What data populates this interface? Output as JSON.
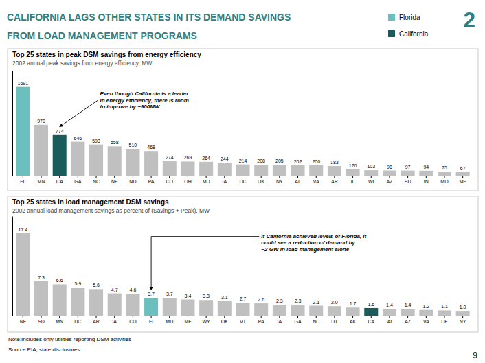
{
  "page": {
    "title": "CALIFORNIA LAGS OTHER STATES IN ITS DEMAND SAVINGS\nFROM LOAD MANAGEMENT PROGRAMS",
    "title_color": "#2e8080",
    "slide_number": "2",
    "legend_entries": [
      {
        "name": "Florida",
        "color": "#6bbfbf"
      },
      {
        "name": "California",
        "color": "#1a5c5c"
      }
    ],
    "note": "Note:Includes only utilities reporting DSM activities",
    "source": "Source:EIA;  state disclosures",
    "page_number": "9"
  },
  "chart_data": [
    {
      "type": "bar",
      "title": "Top 25 states in peak DSM savings from energy efficiency",
      "subtitle": "2002 annual peak savings from energy efficiency, MW",
      "categories": [
        "FL",
        "MN",
        "CA",
        "GA",
        "NC",
        "NE",
        "ND",
        "PA",
        "CO",
        "OH",
        "MD",
        "IA",
        "DC",
        "OK",
        "NY",
        "AL",
        "VA",
        "AR",
        "IL",
        "WI",
        "AZ",
        "SD",
        "IN",
        "MO",
        "ME"
      ],
      "values": [
        1691,
        970,
        774,
        646,
        593,
        558,
        510,
        468,
        274,
        269,
        264,
        244,
        214,
        208,
        205,
        202,
        200,
        183,
        120,
        103,
        98,
        97,
        94,
        75,
        67
      ],
      "colors": [
        "#6bbfbf",
        "#c0c0c0",
        "#1a5c5c",
        "#c0c0c0",
        "#c0c0c0",
        "#c0c0c0",
        "#c0c0c0",
        "#c0c0c0",
        "#c0c0c0",
        "#c0c0c0",
        "#c0c0c0",
        "#c0c0c0",
        "#c0c0c0",
        "#c0c0c0",
        "#c0c0c0",
        "#c0c0c0",
        "#c0c0c0",
        "#c0c0c0",
        "#c0c0c0",
        "#c0c0c0",
        "#c0c0c0",
        "#c0c0c0",
        "#c0c0c0",
        "#c0c0c0",
        "#c0c0c0"
      ],
      "ylim": [
        0,
        2000
      ],
      "tick_labels": "x",
      "data_labels": true,
      "grid": false,
      "annotations": [
        {
          "text": "Even though California is a leader\nin energy efficiency, there is room\nto improve by ~900MW",
          "category": "CA"
        }
      ]
    },
    {
      "type": "bar",
      "title": "Top 25 states in load management DSM savings",
      "subtitle": "2002 annual load management savings as percent of (Savings + Peak), MW",
      "categories": [
        "NF",
        "SD",
        "MN",
        "DC",
        "AR",
        "IA",
        "CO",
        "FI",
        "MD",
        "MF",
        "WY",
        "OK",
        "VT",
        "PA",
        "IA",
        "GA",
        "NC",
        "UT",
        "AK",
        "CA",
        "AI",
        "AZ",
        "VA",
        "DF",
        "NY"
      ],
      "values": [
        17.4,
        7.3,
        6.6,
        5.9,
        5.6,
        4.7,
        4.6,
        3.7,
        3.7,
        3.4,
        3.3,
        3.1,
        2.7,
        2.6,
        2.3,
        2.3,
        2.1,
        2.0,
        1.7,
        1.6,
        1.4,
        1.4,
        1.2,
        1.1,
        1.0
      ],
      "value_labels": [
        "17.4",
        "7.3",
        "6.6",
        "5.9",
        "5.6",
        "4.7",
        "4.6",
        "3.7",
        "3.7",
        "3.4",
        "3.3",
        "3.1",
        "2.7",
        "2.6",
        "2.3",
        "2.3",
        "2.1",
        "2.0",
        "1.7",
        "1.6",
        "1.4",
        "1.4",
        "1.2",
        "1.1",
        "1.0"
      ],
      "colors": [
        "#c0c0c0",
        "#c0c0c0",
        "#c0c0c0",
        "#c0c0c0",
        "#c0c0c0",
        "#c0c0c0",
        "#c0c0c0",
        "#6bbfbf",
        "#c0c0c0",
        "#c0c0c0",
        "#c0c0c0",
        "#c0c0c0",
        "#c0c0c0",
        "#c0c0c0",
        "#c0c0c0",
        "#c0c0c0",
        "#c0c0c0",
        "#c0c0c0",
        "#c0c0c0",
        "#1a5c5c",
        "#c0c0c0",
        "#c0c0c0",
        "#c0c0c0",
        "#c0c0c0",
        "#c0c0c0"
      ],
      "ylim": [
        0,
        21
      ],
      "tick_labels": "x",
      "data_labels": true,
      "grid": false,
      "annotations": [
        {
          "text": "If California achieved levels of Florida, it\ncould see a reduction of demand by\n~2 GW in load management alone",
          "category": "FI"
        }
      ]
    }
  ]
}
